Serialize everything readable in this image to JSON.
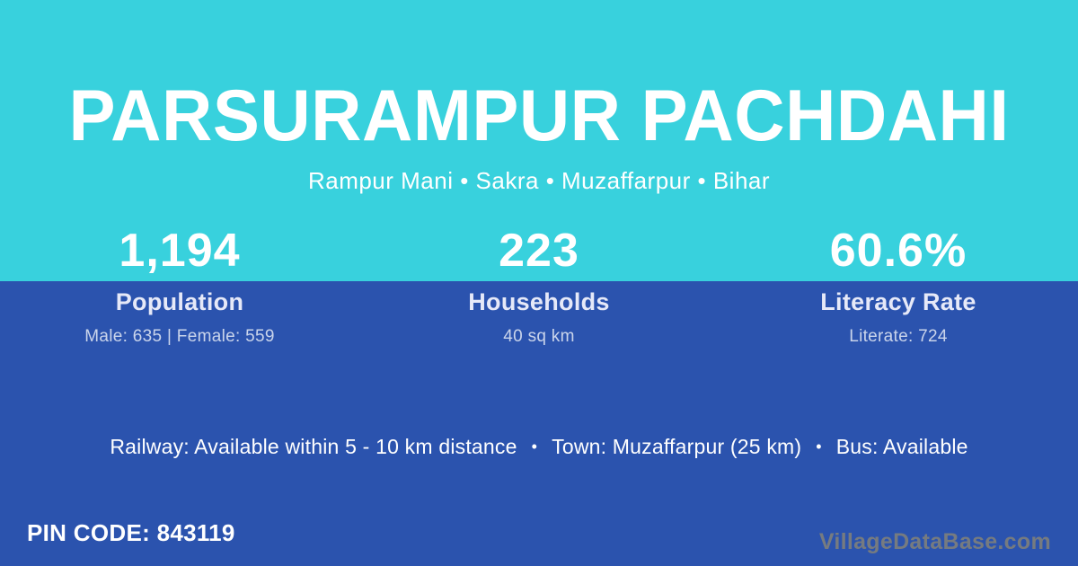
{
  "card": {
    "title": "PARSURAMPUR PACHDAHI",
    "subtitle": "Rampur Mani • Sakra • Muzaffarpur • Bihar"
  },
  "stats": [
    {
      "value": "1,194",
      "label": "Population",
      "detail": "Male: 635 | Female: 559"
    },
    {
      "value": "223",
      "label": "Households",
      "detail": "40 sq km"
    },
    {
      "value": "60.6%",
      "label": "Literacy Rate",
      "detail": "Literate: 724"
    }
  ],
  "info": {
    "railway": "Railway: Available within 5 - 10 km distance",
    "town": "Town: Muzaffarpur (25 km)",
    "bus": "Bus: Available",
    "separator": "•"
  },
  "footer": {
    "pin_code": "PIN CODE: 843119",
    "watermark": "VillageDataBase.com"
  },
  "colors": {
    "teal": "#38d1dd",
    "blue": "#2b53ae",
    "text": "#ffffff",
    "muted_text": "rgba(255,255,255,0.75)",
    "watermark": "#767b80"
  }
}
